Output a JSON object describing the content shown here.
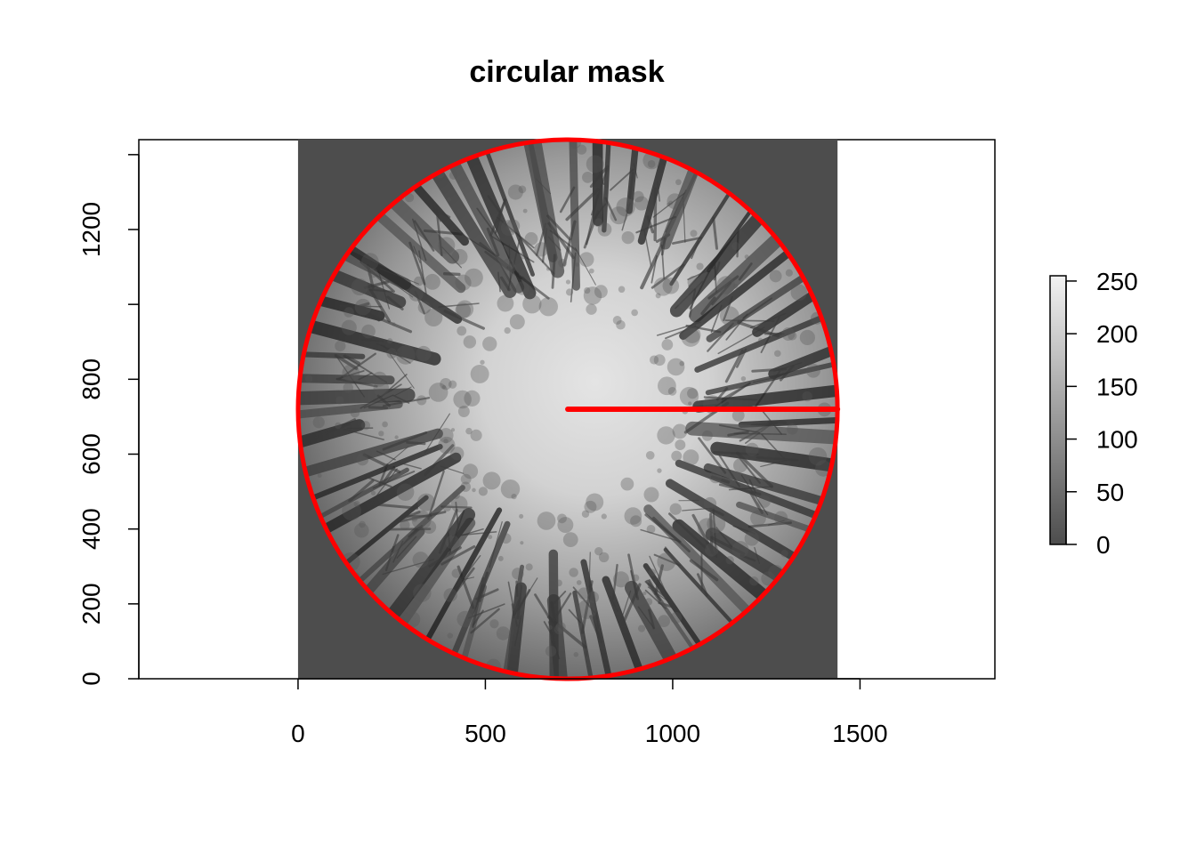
{
  "chart_data": {
    "type": "image",
    "title": "circular mask",
    "xlabel": "",
    "ylabel": "",
    "xlim": [
      -425,
      1860
    ],
    "ylim": [
      0,
      1440
    ],
    "x_ticks": [
      0,
      500,
      1000,
      1500
    ],
    "y_ticks": [
      0,
      200,
      400,
      600,
      800,
      1000,
      1200,
      1400
    ],
    "y_tick_labels": [
      "0",
      "200",
      "400",
      "600",
      "800",
      "",
      "1200",
      ""
    ],
    "image_extent": {
      "x": [
        0,
        1440
      ],
      "y": [
        0,
        1440
      ]
    },
    "mask_circle": {
      "center": [
        720,
        720
      ],
      "radius": 720,
      "color": "#ff0000"
    },
    "radius_line": {
      "from": [
        720,
        720
      ],
      "to": [
        1440,
        720
      ],
      "color": "#ff0000"
    },
    "outside_mask_gray": "#4d4d4d",
    "colorbar": {
      "range": [
        0,
        255
      ],
      "ticks": [
        0,
        50,
        100,
        150,
        200,
        250
      ],
      "colors": [
        "#4d4d4d",
        "#f2f2f2"
      ]
    }
  }
}
